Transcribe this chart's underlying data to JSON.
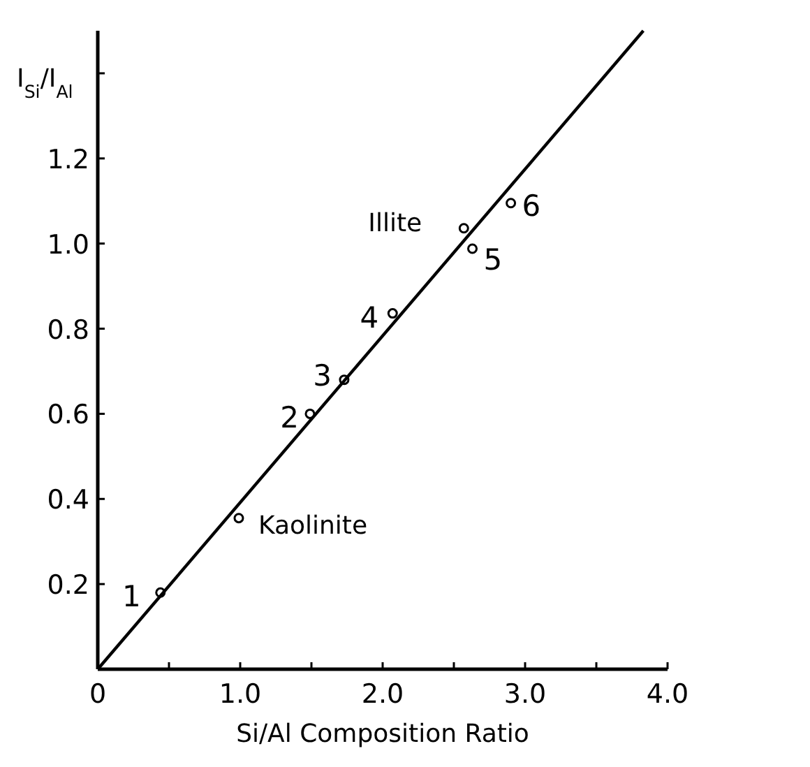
{
  "chart_data": {
    "type": "scatter",
    "xlabel": "Si/Al  Composition Ratio",
    "ylabel": "I$_{Si}$/I$_{Al}$",
    "xlim": [
      0,
      4.0
    ],
    "ylim": [
      0,
      1.5
    ],
    "xticks": [
      0,
      {
        "value": 0.5,
        "label": null
      },
      {
        "value": 1,
        "label": "1.0"
      },
      {
        "value": 1.5,
        "label": null
      },
      {
        "value": 2,
        "label": "2.0"
      },
      {
        "value": 2.5,
        "label": null
      },
      {
        "value": 3,
        "label": "3.0"
      },
      {
        "value": 3.5,
        "label": null
      },
      {
        "value": 4,
        "label": "4.0"
      }
    ],
    "yticks": [
      0.2,
      0.4,
      0.6,
      0.8,
      {
        "value": 1,
        "label": "1.0"
      },
      1.2,
      {
        "value": 1.4,
        "label": null
      }
    ],
    "grid": false,
    "marker": "circle",
    "series": [
      {
        "color": "#000000",
        "x": [
          0.44,
          0.99,
          1.49,
          1.73,
          2.07,
          2.57,
          2.63,
          2.9
        ],
        "values": [
          0.18,
          0.355,
          0.6,
          0.68,
          0.836,
          1.036,
          0.988,
          1.095
        ]
      },
      {
        "type": "line",
        "color": "#000000",
        "line_style": "solid",
        "marker": "none",
        "x": [
          0,
          3.83
        ],
        "values": [
          0,
          1.5
        ]
      }
    ],
    "annotations": [
      {
        "text": "1",
        "x": 0.44,
        "y": 0.18
      },
      {
        "text": "Kaolinite",
        "x": 0.99,
        "y": 0.355
      },
      {
        "text": "2",
        "x": 1.49,
        "y": 0.6
      },
      {
        "text": "3",
        "x": 1.73,
        "y": 0.68
      },
      {
        "text": "4",
        "x": 2.07,
        "y": 0.836
      },
      {
        "text": "Illite",
        "x": 2.57,
        "y": 1.036
      },
      {
        "text": "5",
        "x": 2.63,
        "y": 0.988
      },
      {
        "text": "6",
        "x": 2.9,
        "y": 1.095
      }
    ]
  }
}
